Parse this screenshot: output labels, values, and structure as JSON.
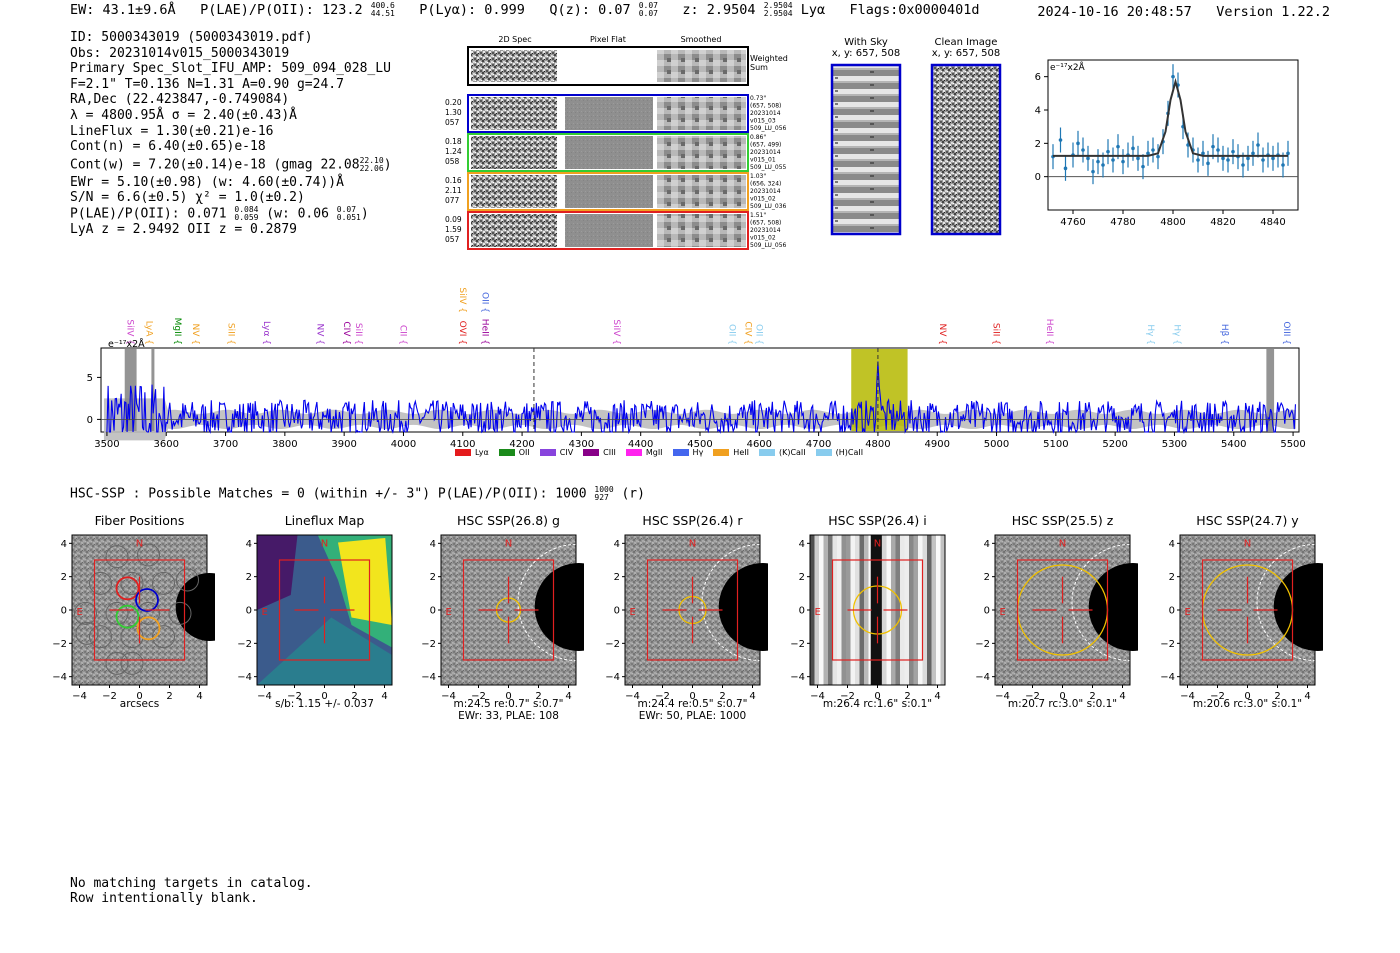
{
  "header": {
    "ew": "EW: 43.1±9.6Å",
    "plae_label": "P(LAE)/P(OII): 123.2",
    "plae_hi": "400.6",
    "plae_lo": "44.51",
    "plya": "P(Lyα): 0.999",
    "qz_label": "Q(z): 0.07",
    "qz_hi": "0.07",
    "qz_lo": "0.07",
    "z_label": "z: 2.9504",
    "z_hi": "2.9504",
    "z_lo": "2.9504",
    "line": "Lyα",
    "flags": "Flags:0x0000401d",
    "timestamp": "2024-10-16 20:48:57",
    "version": "Version 1.22.2"
  },
  "info": {
    "id": "ID: 5000343019 (5000343019.pdf)",
    "obs": "Obs: 20231014v015_5000343019",
    "primary": "Primary Spec_Slot_IFU_AMP: 509_094_028_LU",
    "fline": "F=2.1\"  T=0.136  N=1.31  A=0.90  g=24.7",
    "radec": "RA,Dec (22.423847,-0.749084)",
    "lambda": "λ = 4800.95Å  σ = 2.40(±0.43)Å",
    "lineflux": "LineFlux = 1.30(±0.21)e-16",
    "contn": "Cont(n) = 6.40(±0.65)e-18",
    "contw": "Cont(w) = 7.20(±0.14)e-18 (gmag 22.08",
    "contw_hi": "22.10",
    "contw_lo": "22.06",
    "contw_end": ")",
    "ewr": "EWr = 5.10(±0.98) (w: 4.60(±0.74))Å",
    "sn": "S/N = 6.6(±0.5)  χ² = 1.0(±0.2)",
    "plae": "P(LAE)/P(OII): 0.071",
    "plae_hi": "0.084",
    "plae_lo": "0.059",
    "plae_w": "(w: 0.06",
    "plae_w_hi": "0.07",
    "plae_w_lo": "0.051",
    "plae_w_end": ")",
    "lya": "LyA z = 2.9492  OII z = 0.2879"
  },
  "cutouts": {
    "col_2d": "2D Spec",
    "col_flat": "Pixel Flat",
    "col_smooth": "Smoothed",
    "weighted": "Weighted",
    "sum": "Sum",
    "rows": [
      {
        "left": [
          "0.20",
          "1.30",
          "057"
        ],
        "right": [
          "0.73\"",
          "(657, 508)",
          "20231014",
          "v015_03",
          "509_LU_056"
        ],
        "color": "#0000cc"
      },
      {
        "left": [
          "0.18",
          "1.24",
          "058"
        ],
        "right": [
          "0.86\"",
          "(657, 499)",
          "20231014",
          "v015_01",
          "509_LU_055"
        ],
        "color": "#33cc33"
      },
      {
        "left": [
          "0.16",
          "2.11",
          "077"
        ],
        "right": [
          "1.03\"",
          "(656, 324)",
          "20231014",
          "v015_02",
          "509_LU_036"
        ],
        "color": "#f0a020"
      },
      {
        "left": [
          "0.09",
          "1.59",
          "057"
        ],
        "right": [
          "1.51\"",
          "(657, 508)",
          "20231014",
          "v015_02",
          "509_LU_056"
        ],
        "color": "#e02020"
      }
    ]
  },
  "sky": {
    "with_sky": "With Sky",
    "with_sky_xy": "x, y: 657, 508",
    "clean": "Clean Image",
    "clean_xy": "x, y: 657, 508"
  },
  "zoom_chart": {
    "ylabel": "e⁻¹⁷x2Å",
    "xticks": [
      "4760",
      "4780",
      "4800",
      "4820",
      "4840"
    ],
    "yticks": [
      "0",
      "2",
      "4",
      "6"
    ]
  },
  "lines": [
    {
      "name": "SiIV",
      "color": "#cc44cc",
      "wave": 3530
    },
    {
      "name": "LyA",
      "color": "#f0a020",
      "wave": 3562
    },
    {
      "name": "MgII",
      "color": "#008800",
      "wave": 3610
    },
    {
      "name": "NV",
      "color": "#f0a020",
      "wave": 3640
    },
    {
      "name": "SiII",
      "color": "#f0a020",
      "wave": 3700
    },
    {
      "name": "Lyα",
      "color": "#9933cc",
      "wave": 3760
    },
    {
      "name": "NV",
      "color": "#9933cc",
      "wave": 3850
    },
    {
      "name": "CIV",
      "color": "#990099",
      "wave": 3895
    },
    {
      "name": "SiII",
      "color": "#cc44cc",
      "wave": 3915
    },
    {
      "name": "CII",
      "color": "#cc44cc",
      "wave": 3990
    },
    {
      "name": "OVI",
      "color": "#e02020",
      "wave": 4090
    },
    {
      "name": "SiIV",
      "color": "#f0a020",
      "wave": 4090
    },
    {
      "name": "HeII",
      "color": "#990099",
      "wave": 4128
    },
    {
      "name": "OII",
      "color": "#4466dd",
      "wave": 4128
    },
    {
      "name": "SiIV",
      "color": "#cc44cc",
      "wave": 4350
    },
    {
      "name": "OII",
      "color": "#88ccee",
      "wave": 4545
    },
    {
      "name": "CIV",
      "color": "#f0a020",
      "wave": 4572
    },
    {
      "name": "OII",
      "color": "#88ccee",
      "wave": 4590
    },
    {
      "name": "NV",
      "color": "#e02020",
      "wave": 4900
    },
    {
      "name": "SiII",
      "color": "#e02020",
      "wave": 4990
    },
    {
      "name": "HeII",
      "color": "#cc44cc",
      "wave": 5080
    },
    {
      "name": "Hγ",
      "color": "#88ccee",
      "wave": 5250
    },
    {
      "name": "Hγ",
      "color": "#88ccee",
      "wave": 5295
    },
    {
      "name": "Hβ",
      "color": "#4466dd",
      "wave": 5375
    },
    {
      "name": "OIII",
      "color": "#4466dd",
      "wave": 5480
    }
  ],
  "legend": [
    {
      "name": "Lyα",
      "color": "#e41a1c"
    },
    {
      "name": "OII",
      "color": "#1a8a1a"
    },
    {
      "name": "CIV",
      "color": "#8844dd"
    },
    {
      "name": "CIII",
      "color": "#880088"
    },
    {
      "name": "MgII",
      "color": "#ff22ee"
    },
    {
      "name": "Hγ",
      "color": "#4466ee"
    },
    {
      "name": "HeII",
      "color": "#f0a020"
    },
    {
      "name": "(K)CaII",
      "color": "#88ccee"
    },
    {
      "name": "(H)CaII",
      "color": "#88ccee"
    }
  ],
  "chart_data": [
    {
      "type": "line",
      "title": "",
      "ylabel": "e⁻¹⁷x2Å",
      "xlim": [
        3490,
        5510
      ],
      "ylim": [
        -1.5,
        8.5
      ],
      "xticks": [
        "3500",
        "3600",
        "3700",
        "3800",
        "3900",
        "4000",
        "4100",
        "4200",
        "4300",
        "4400",
        "4500",
        "4600",
        "4700",
        "4800",
        "4900",
        "5000",
        "5100",
        "5200",
        "5300",
        "5400",
        "5500"
      ],
      "yticks": [
        "0",
        "5"
      ],
      "highlight_band": [
        4755,
        4850
      ],
      "dashed_lines": [
        4220,
        4800
      ],
      "shaded_masks": [
        [
          3530,
          3550
        ],
        [
          3575,
          3580
        ],
        [
          5455,
          5468
        ]
      ],
      "emission_peak": {
        "x": 4801,
        "y": 6.0
      }
    },
    {
      "type": "line",
      "title": "",
      "ylabel": "e⁻¹⁷x2Å",
      "xlim": [
        4750,
        4850
      ],
      "ylim": [
        -2.0,
        7.0
      ],
      "series": [
        {
          "name": "data",
          "x": [
            4752,
            4755,
            4757,
            4760,
            4762,
            4764,
            4766,
            4768,
            4770,
            4772,
            4774,
            4776,
            4778,
            4780,
            4782,
            4784,
            4786,
            4788,
            4790,
            4792,
            4794,
            4796,
            4798,
            4800,
            4802,
            4804,
            4806,
            4808,
            4810,
            4812,
            4814,
            4816,
            4818,
            4820,
            4822,
            4824,
            4826,
            4828,
            4830,
            4832,
            4834,
            4836,
            4838,
            4840,
            4842,
            4844,
            4846
          ],
          "y": [
            1.2,
            2.2,
            0.5,
            1.3,
            2.0,
            1.6,
            1.1,
            0.3,
            0.9,
            0.7,
            1.5,
            1.0,
            1.8,
            0.9,
            1.3,
            1.7,
            1.1,
            0.6,
            1.4,
            1.6,
            1.2,
            2.1,
            3.8,
            6.0,
            5.5,
            3.0,
            1.9,
            1.6,
            1.0,
            1.4,
            0.8,
            1.8,
            1.6,
            1.1,
            1.0,
            1.5,
            1.2,
            0.7,
            1.1,
            1.4,
            1.9,
            1.0,
            1.3,
            1.1,
            1.3,
            0.7,
            1.4
          ]
        },
        {
          "name": "fit",
          "x": [
            4752,
            4790,
            4794,
            4797,
            4799,
            4801,
            4803,
            4805,
            4808,
            4812,
            4846
          ],
          "y": [
            1.25,
            1.25,
            1.4,
            2.7,
            4.6,
            5.7,
            4.6,
            2.7,
            1.4,
            1.25,
            1.25
          ]
        }
      ],
      "xticks": [
        "4760",
        "4780",
        "4800",
        "4820",
        "4840"
      ],
      "yticks": [
        "0",
        "2",
        "4",
        "6"
      ]
    }
  ],
  "hsc": {
    "title_left": "HSC-SSP : Possible Matches = 0 (within +/- 3\")  P(LAE)/P(OII): 1000",
    "title_hi": "1000",
    "title_lo": "927",
    "title_right": "(r)"
  },
  "panels": [
    {
      "title": "Fiber Positions",
      "cap1": "arcsecs",
      "cap2": ""
    },
    {
      "title": "Lineflux Map",
      "cap1": "s/b: 1.15 +/- 0.037",
      "cap2": ""
    },
    {
      "title": "HSC SSP(26.8) g",
      "cap1": "m:24.5  re:0.7\"  s:0.7\"",
      "cap2": "EWr: 33, PLAE: 108"
    },
    {
      "title": "HSC SSP(26.4) r",
      "cap1": "m:24.4  re:0.5\"  s:0.7\"",
      "cap2": "EWr: 50, PLAE: 1000"
    },
    {
      "title": "HSC SSP(26.4) i",
      "cap1": "m:26.4 rc:1.6\"  s:0.1\"",
      "cap2": ""
    },
    {
      "title": "HSC SSP(25.5) z",
      "cap1": "m:20.7 rc:3.0\"  s:0.1\"",
      "cap2": ""
    },
    {
      "title": "HSC SSP(24.7) y",
      "cap1": "m:20.6 rc:3.0\"  s:0.1\"",
      "cap2": ""
    }
  ],
  "panel_axes": {
    "xticks": [
      "−4",
      "−2",
      "0",
      "2",
      "4"
    ],
    "yticks": [
      "4",
      "2",
      "0",
      "−2",
      "−4"
    ],
    "north": "N",
    "east": "E"
  },
  "footer": {
    "line1": "No matching targets in catalog.",
    "line2": "Row intentionally blank."
  }
}
